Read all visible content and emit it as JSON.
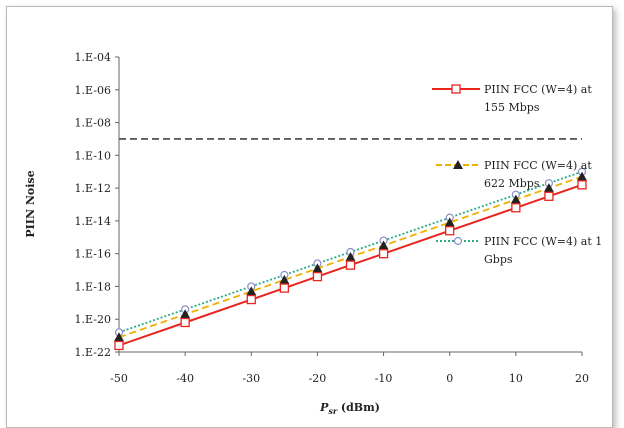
{
  "chart_data": {
    "type": "line",
    "ylabel": "PIIN Noise",
    "xlabel_main": "P",
    "xlabel_sub": "sr",
    "xlabel_unit": " (dBm)",
    "y_log_scale": true,
    "xlim": [
      -50,
      20
    ],
    "ylim_exp": [
      -22,
      -4
    ],
    "x_ticks": [
      "-50",
      "-40",
      "-30",
      "-20",
      "-10",
      "0",
      "10",
      "20"
    ],
    "y_ticks": [
      "1.E-04",
      "1.E-06",
      "1.E-08",
      "1.E-10",
      "1.E-12",
      "1.E-14",
      "1.E-16",
      "1.E-18",
      "1.E-20",
      "1.E-22"
    ],
    "threshold_exp": -9,
    "x": [
      -50,
      -40,
      -30,
      -25,
      -20,
      -15,
      -10,
      0,
      10,
      15,
      20
    ],
    "series": [
      {
        "name": "PIIN FCC (W=4) at 155 Mbps",
        "legend_line1": "PIIN FCC (W=4) at",
        "legend_line2": "155 Mbps",
        "color": "#e8251f",
        "marker": "square",
        "style": "solid",
        "log10_values": [
          -21.6,
          -20.2,
          -18.8,
          -18.1,
          -17.4,
          -16.7,
          -16.0,
          -14.6,
          -13.2,
          -12.5,
          -11.8
        ]
      },
      {
        "name": "PIIN FCC (W=4) at 622 Mbps",
        "legend_line1": "PIIN FCC (W=4) at",
        "legend_line2": "622 Mbps",
        "color": "#f0b000",
        "marker": "triangle",
        "style": "dashed",
        "log10_values": [
          -21.1,
          -19.7,
          -18.3,
          -17.6,
          -16.9,
          -16.2,
          -15.5,
          -14.1,
          -12.7,
          -12.0,
          -11.3
        ]
      },
      {
        "name": "PIIN FCC (W=4) at 1 Gbps",
        "legend_line1": "PIIN FCC (W=4) at 1",
        "legend_line2": "Gbps",
        "color": "#2eaa8a",
        "marker": "circle",
        "style": "dotted",
        "log10_values": [
          -20.8,
          -19.4,
          -18.0,
          -17.3,
          -16.6,
          -15.9,
          -15.2,
          -13.8,
          -12.4,
          -11.7,
          -11.0
        ]
      }
    ]
  }
}
